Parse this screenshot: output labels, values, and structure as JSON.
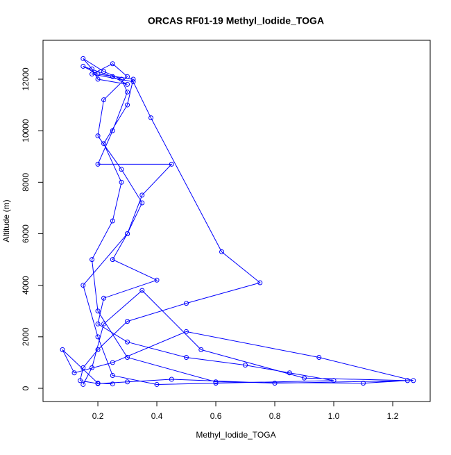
{
  "chart_data": {
    "type": "line",
    "title": "ORCAS RF01-19 Methyl_Iodide_TOGA",
    "x_label": "Methyl_Iodide_TOGA",
    "y_label": "Altitude (m)",
    "x": [
      0.15,
      0.18,
      0.22,
      0.35,
      0.55,
      0.9,
      1.25,
      1.1,
      0.6,
      0.3,
      0.2,
      0.18,
      0.25,
      0.28,
      0.22,
      0.3,
      0.32,
      0.2,
      0.15,
      0.25,
      0.3,
      0.2,
      0.18,
      0.15,
      0.22,
      0.28,
      0.3,
      0.25,
      0.2,
      0.45,
      0.35,
      0.3,
      0.25,
      0.4,
      0.22,
      0.2,
      0.3,
      0.5,
      0.7,
      0.85,
      1.0,
      0.6,
      0.4,
      0.25,
      0.2,
      0.15,
      0.3,
      0.35,
      0.28,
      0.2,
      0.22,
      0.3,
      0.25,
      0.18,
      0.32,
      0.38,
      0.62,
      0.75,
      0.5,
      0.3,
      0.2,
      0.15,
      0.14,
      0.2,
      0.3,
      0.45,
      0.8,
      1.27,
      0.95,
      0.5,
      0.25,
      0.12,
      0.08,
      0.2,
      0.25
    ],
    "values": [
      150,
      800,
      2500,
      3800,
      1500,
      400,
      300,
      200,
      250,
      1200,
      3000,
      5000,
      6500,
      8000,
      9500,
      11000,
      12000,
      12200,
      12500,
      12100,
      11800,
      12000,
      12400,
      12800,
      12300,
      12000,
      11500,
      10000,
      8700,
      8700,
      7500,
      6000,
      5000,
      4200,
      3500,
      2500,
      1800,
      1200,
      900,
      600,
      300,
      200,
      150,
      500,
      2000,
      4000,
      6000,
      7200,
      8500,
      9800,
      11200,
      12100,
      12600,
      12200,
      11900,
      10500,
      5300,
      4100,
      3300,
      2600,
      1500,
      800,
      300,
      180,
      250,
      350,
      200,
      300,
      1200,
      2200,
      1000,
      600,
      1500,
      200,
      170
    ],
    "color": "#0000ff",
    "markers": true,
    "xlim": [
      0.014,
      1.327
    ],
    "xticks": [
      0.2,
      0.4,
      0.6,
      0.8,
      1.0,
      1.2
    ],
    "ylim": [
      -512,
      13510
    ],
    "yticks": [
      0,
      2000,
      4000,
      6000,
      8000,
      10000,
      12000
    ]
  }
}
